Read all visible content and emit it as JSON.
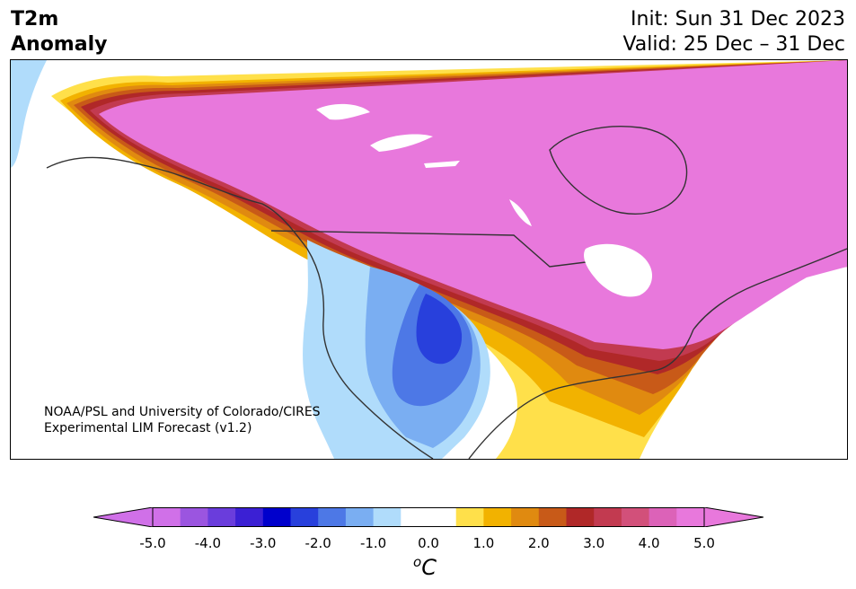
{
  "title_left_line1": "T2m",
  "title_left_line2": "Anomaly",
  "title_right_line1": "Init: Sun 31 Dec 2023",
  "title_right_line2": "Valid: 25 Dec – 31 Dec",
  "credit_line1": "NOAA/PSL and University of Colorado/CIRES",
  "credit_line2": "Experimental LIM Forecast (v1.2)",
  "colorbar": {
    "unit_base": "C",
    "unit_sup": "o",
    "tick_labels": [
      "-5.0",
      "-4.0",
      "-3.0",
      "-2.0",
      "-1.0",
      "0.0",
      "1.0",
      "2.0",
      "3.0",
      "4.0",
      "5.0"
    ],
    "colors": [
      "#d070e8",
      "#9b55e0",
      "#6a3ddc",
      "#3b20d4",
      "#0000cc",
      "#2840dc",
      "#4d78e6",
      "#7aaef2",
      "#b0dcfb",
      "#ffffff",
      "#ffffff",
      "#ffe04a",
      "#f2b200",
      "#e08a10",
      "#c85a18",
      "#b02828",
      "#c23a50",
      "#d2507a",
      "#dc62b8",
      "#e878dc"
    ],
    "extend_low_color": "#d070e8",
    "extend_high_color": "#e878dc"
  },
  "map_colors": {
    "warm_max": "#e878dc",
    "warm_ring": [
      "#dc62b8",
      "#c23a50",
      "#b02828",
      "#c85a18",
      "#e08a10",
      "#f2b200",
      "#ffe04a"
    ],
    "cool": [
      "#b0dcfb",
      "#7aaef2",
      "#4d78e6",
      "#2840dc"
    ],
    "coast": "#333333",
    "lake": "#ffffff"
  }
}
